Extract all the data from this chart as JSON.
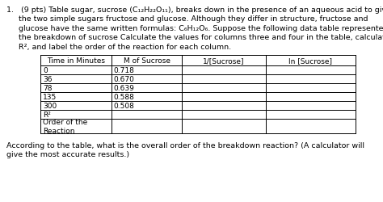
{
  "paragraph_line1": "1.   (9 pts) Table sugar, sucrose (C₁₂H₂₂O₁₁), breaks down in the presence of an aqueous acid to give",
  "paragraph_line2": "     the two simple sugars fructose and glucose. Although they differ in structure, fructose and",
  "paragraph_line3": "     glucose have the same written formulas: C₆H₁₂O₆. Suppose the following data table represented",
  "paragraph_line4": "     the breakdown of sucrose Calculate the values for columns three and four in the table, calculate",
  "paragraph_line5": "     R², and label the order of the reaction for each column.",
  "footer_line1": "According to the table, what is the overall order of the breakdown reaction? (A calculator will",
  "footer_line2": "give the most accurate results.)",
  "col_headers": [
    "Time in Minutes",
    "M of Sucrose",
    "1/[Sucrose]",
    "ln [Sucrose]"
  ],
  "row_labels": [
    "0",
    "36",
    "78",
    "135",
    "300",
    "R²",
    "Order of the\nReaction"
  ],
  "col2_values": [
    "0.718",
    "0.670",
    "0.639",
    "0.588",
    "0.508",
    "",
    ""
  ],
  "bg_color": "#ffffff",
  "text_color": "#000000",
  "font_size_body": 6.8,
  "font_size_table": 6.5
}
